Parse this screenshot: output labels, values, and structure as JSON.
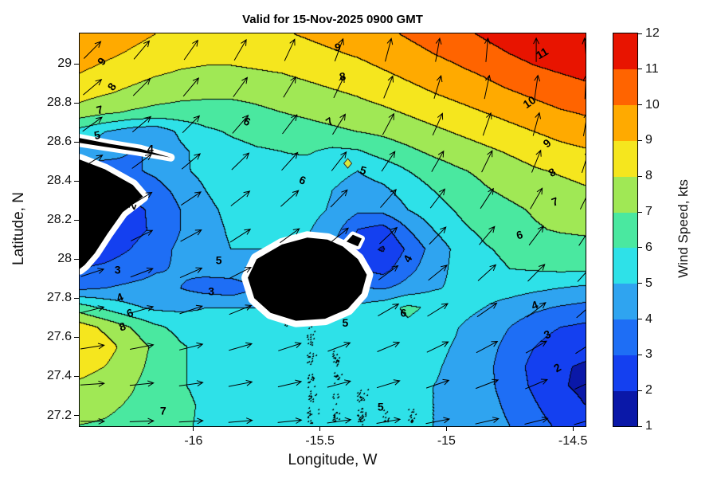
{
  "figure": {
    "title": "Valid for 15-Nov-2025 0900 GMT",
    "xlabel": "Longitude, W",
    "ylabel": "Latitude, N",
    "colorbar_label": "Wind Speed, kts",
    "background": "#ffffff"
  },
  "chart_data": {
    "type": "heatmap",
    "style": "filled-contour wind field with quiver arrows and coastline mask",
    "x_range": [
      -16.45,
      -14.45
    ],
    "y_range": [
      27.145,
      29.155
    ],
    "x_ticks": [
      -16,
      -15.5,
      -15,
      -14.5
    ],
    "x_tick_labels": [
      "-16",
      "-15.5",
      "-15",
      "-14.5"
    ],
    "y_ticks": [
      27.2,
      27.4,
      27.6,
      27.8,
      28,
      28.2,
      28.4,
      28.6,
      28.8,
      29
    ],
    "y_tick_labels": [
      "27.2",
      "27.4",
      "27.6",
      "27.8",
      "28",
      "28.2",
      "28.4",
      "28.6",
      "28.8",
      "29"
    ],
    "colorbar_ticks": [
      1,
      2,
      3,
      4,
      5,
      6,
      7,
      8,
      9,
      10,
      11,
      12
    ],
    "levels": [
      1,
      2,
      3,
      4,
      5,
      6,
      7,
      8,
      9,
      10,
      11,
      12
    ],
    "band_colors": [
      "#0a18a8",
      "#1440f0",
      "#1e6ef5",
      "#2fa4f0",
      "#2ee1e8",
      "#4ae8a0",
      "#a0e855",
      "#f5e61e",
      "#ffaa00",
      "#ff6400",
      "#e81400"
    ],
    "contour_line_color": "#000000",
    "grid": {
      "lon_start": -16.45,
      "lon_step": 0.1,
      "lat_start": 29.15,
      "lat_step": -0.1,
      "units": "kts",
      "values": [
        [
          9.8,
          9.6,
          9.3,
          9.0,
          8.8,
          8.7,
          8.7,
          8.8,
          8.9,
          9.1,
          9.3,
          9.5,
          9.8,
          10.1,
          10.4,
          10.8,
          11.1,
          11.4,
          11.7,
          11.9,
          12.0
        ],
        [
          9.5,
          9.2,
          8.9,
          8.6,
          8.4,
          8.3,
          8.3,
          8.4,
          8.5,
          8.7,
          8.9,
          9.1,
          9.4,
          9.7,
          10.0,
          10.3,
          10.7,
          11.0,
          11.3,
          11.5,
          11.7
        ],
        [
          9.0,
          8.7,
          8.4,
          8.1,
          7.9,
          7.8,
          7.8,
          7.9,
          8.0,
          8.2,
          8.4,
          8.6,
          8.9,
          9.2,
          9.5,
          9.8,
          10.1,
          10.5,
          10.8,
          11.0,
          11.2
        ],
        [
          8.4,
          8.1,
          7.8,
          7.5,
          7.3,
          7.2,
          7.2,
          7.3,
          7.5,
          7.7,
          7.9,
          8.1,
          8.4,
          8.7,
          9.0,
          9.3,
          9.6,
          9.9,
          10.2,
          10.5,
          10.7
        ],
        [
          7.6,
          7.2,
          6.9,
          6.7,
          6.6,
          6.6,
          6.6,
          6.8,
          7.0,
          7.2,
          7.4,
          7.6,
          7.8,
          8.1,
          8.4,
          8.7,
          9.0,
          9.3,
          9.6,
          9.9,
          10.1
        ],
        [
          5.6,
          5.0,
          4.5,
          4.3,
          5.2,
          5.8,
          6.1,
          6.3,
          6.4,
          6.6,
          6.8,
          7.0,
          7.2,
          7.5,
          7.8,
          8.1,
          8.4,
          8.7,
          9.0,
          9.3,
          9.5
        ],
        [
          4.8,
          4.4,
          4.0,
          4.0,
          4.8,
          5.4,
          5.7,
          5.9,
          6.0,
          6.1,
          5.8,
          5.9,
          6.4,
          6.8,
          7.2,
          7.5,
          7.8,
          8.1,
          8.4,
          8.7,
          8.9
        ],
        [
          3.5,
          3.5,
          3.8,
          4.2,
          4.8,
          5.3,
          5.6,
          5.8,
          5.8,
          5.6,
          5.3,
          5.0,
          5.4,
          6.0,
          6.5,
          6.9,
          7.2,
          7.6,
          7.9,
          8.1,
          8.3
        ],
        [
          3.0,
          3.0,
          3.2,
          3.6,
          4.3,
          5.0,
          5.4,
          5.6,
          5.6,
          5.4,
          5.0,
          4.6,
          4.8,
          5.4,
          6.0,
          6.5,
          6.9,
          7.2,
          7.5,
          7.7,
          7.9
        ],
        [
          2.4,
          2.4,
          2.7,
          3.2,
          4.0,
          4.8,
          5.2,
          5.5,
          5.5,
          5.3,
          4.9,
          4.2,
          4.3,
          5.0,
          5.6,
          6.1,
          6.5,
          6.8,
          7.1,
          7.3,
          7.5
        ],
        [
          1.8,
          2.2,
          2.6,
          3.2,
          4.0,
          4.7,
          5.1,
          5.3,
          5.3,
          5.1,
          4.5,
          3.0,
          2.6,
          4.0,
          5.0,
          5.8,
          6.2,
          6.6,
          6.9,
          7.1,
          7.2
        ],
        [
          2.2,
          2.5,
          3.0,
          3.6,
          4.2,
          4.7,
          5.0,
          5.0,
          5.0,
          4.8,
          4.0,
          2.4,
          1.9,
          3.2,
          4.4,
          5.3,
          5.9,
          6.2,
          6.4,
          6.5,
          6.6
        ],
        [
          3.0,
          3.2,
          3.5,
          3.9,
          4.1,
          4.3,
          4.6,
          4.8,
          4.9,
          4.8,
          4.4,
          3.0,
          2.6,
          3.7,
          4.6,
          5.3,
          5.7,
          6.0,
          6.1,
          6.2,
          6.2
        ],
        [
          3.8,
          4.0,
          4.2,
          4.3,
          4.0,
          3.6,
          3.4,
          4.0,
          4.6,
          4.8,
          4.6,
          4.1,
          3.9,
          4.4,
          4.9,
          5.2,
          5.4,
          5.4,
          5.2,
          5.0,
          4.8
        ],
        [
          6.5,
          5.8,
          5.2,
          4.8,
          4.8,
          5.0,
          5.0,
          5.0,
          5.0,
          5.0,
          5.0,
          5.2,
          5.6,
          6.2,
          5.8,
          5.3,
          5.0,
          4.6,
          4.2,
          3.9,
          3.7
        ],
        [
          8.5,
          7.8,
          7.0,
          6.2,
          5.7,
          5.4,
          5.2,
          5.1,
          5.0,
          5.0,
          5.0,
          5.2,
          5.5,
          5.8,
          5.4,
          5.0,
          4.6,
          4.0,
          3.4,
          3.0,
          2.8
        ],
        [
          8.8,
          8.4,
          7.6,
          6.8,
          6.1,
          5.7,
          5.4,
          5.2,
          5.1,
          5.0,
          5.0,
          5.0,
          5.2,
          5.4,
          5.2,
          4.9,
          4.4,
          3.7,
          3.0,
          2.5,
          2.3
        ],
        [
          8.4,
          8.0,
          7.4,
          6.7,
          6.1,
          5.7,
          5.4,
          5.2,
          5.1,
          5.0,
          5.0,
          5.0,
          5.1,
          5.2,
          5.1,
          4.8,
          4.3,
          3.5,
          2.7,
          2.1,
          1.9
        ],
        [
          7.8,
          7.5,
          7.1,
          6.6,
          6.1,
          5.7,
          5.4,
          5.2,
          5.1,
          5.0,
          5.0,
          5.0,
          5.0,
          5.1,
          5.0,
          4.8,
          4.3,
          3.6,
          2.8,
          2.1,
          1.8
        ],
        [
          7.4,
          7.2,
          6.9,
          6.8,
          6.3,
          5.8,
          5.4,
          5.2,
          5.1,
          5.0,
          5.0,
          5.0,
          5.0,
          5.0,
          5.0,
          4.8,
          4.4,
          3.8,
          3.1,
          2.4,
          2.0
        ],
        [
          7.0,
          6.9,
          6.7,
          6.6,
          6.2,
          5.8,
          5.4,
          5.2,
          5.1,
          5.0,
          5.0,
          5.0,
          5.0,
          5.0,
          5.0,
          4.8,
          4.5,
          4.0,
          3.4,
          2.8,
          2.4
        ]
      ]
    },
    "arrows": {
      "lon_start": -16.4,
      "lon_step": 0.195,
      "lat_start": 29.07,
      "lat_step": -0.19,
      "directions_deg_math": [
        [
          45,
          50,
          55,
          60,
          65,
          70,
          75,
          80,
          85,
          90,
          95
        ],
        [
          40,
          45,
          50,
          54,
          59,
          64,
          68,
          73,
          78,
          82,
          87
        ],
        [
          36,
          40,
          45,
          49,
          53,
          58,
          62,
          66,
          71,
          75,
          80
        ],
        [
          32,
          36,
          40,
          44,
          48,
          52,
          56,
          60,
          64,
          68,
          72
        ],
        [
          27,
          31,
          34,
          38,
          42,
          46,
          49,
          53,
          57,
          60,
          64
        ],
        [
          22,
          26,
          29,
          33,
          36,
          39,
          43,
          46,
          50,
          53,
          56
        ],
        [
          18,
          21,
          24,
          27,
          30,
          33,
          36,
          39,
          42,
          45,
          48
        ],
        [
          14,
          16,
          19,
          22,
          24,
          27,
          30,
          32,
          35,
          38,
          41
        ],
        [
          9,
          11,
          14,
          16,
          18,
          21,
          23,
          26,
          28,
          30,
          33
        ],
        [
          4,
          6,
          8,
          11,
          13,
          15,
          17,
          19,
          21,
          23,
          25
        ],
        [
          0,
          2,
          3,
          5,
          6,
          8,
          10,
          11,
          13,
          14,
          16
        ]
      ]
    },
    "contour_labels": [
      {
        "value": 9,
        "lon": -16.36,
        "lat": 29.01,
        "rot": -55
      },
      {
        "value": 8,
        "lon": -16.32,
        "lat": 28.88,
        "rot": -55
      },
      {
        "value": 7,
        "lon": -16.37,
        "lat": 28.76,
        "rot": -15
      },
      {
        "value": 5,
        "lon": -16.38,
        "lat": 28.63,
        "rot": -10
      },
      {
        "value": 4,
        "lon": -16.17,
        "lat": 28.56,
        "rot": 0
      },
      {
        "value": 9,
        "lon": -15.43,
        "lat": 29.08,
        "rot": 0
      },
      {
        "value": 8,
        "lon": -15.41,
        "lat": 28.93,
        "rot": -10
      },
      {
        "value": 7,
        "lon": -15.46,
        "lat": 28.7,
        "rot": -35
      },
      {
        "value": 6,
        "lon": -15.79,
        "lat": 28.7,
        "rot": 25
      },
      {
        "value": 6,
        "lon": -15.57,
        "lat": 28.4,
        "rot": 20
      },
      {
        "value": 5,
        "lon": -15.33,
        "lat": 28.45,
        "rot": 15
      },
      {
        "value": 11,
        "lon": -14.62,
        "lat": 29.05,
        "rot": -30
      },
      {
        "value": 10,
        "lon": -14.67,
        "lat": 28.8,
        "rot": -35
      },
      {
        "value": 9,
        "lon": -14.6,
        "lat": 28.59,
        "rot": -40
      },
      {
        "value": 8,
        "lon": -14.58,
        "lat": 28.44,
        "rot": -30
      },
      {
        "value": 7,
        "lon": -14.57,
        "lat": 28.29,
        "rot": -20
      },
      {
        "value": 6,
        "lon": -14.71,
        "lat": 28.12,
        "rot": -15
      },
      {
        "value": 2,
        "lon": -16.24,
        "lat": 28.27,
        "rot": -70
      },
      {
        "value": 3,
        "lon": -16.3,
        "lat": 27.94,
        "rot": 0
      },
      {
        "value": 5,
        "lon": -15.9,
        "lat": 27.99,
        "rot": 0
      },
      {
        "value": 3,
        "lon": -15.93,
        "lat": 27.83,
        "rot": 0
      },
      {
        "value": 4,
        "lon": -16.29,
        "lat": 27.8,
        "rot": -20
      },
      {
        "value": 6,
        "lon": -16.25,
        "lat": 27.72,
        "rot": -20
      },
      {
        "value": 8,
        "lon": -16.28,
        "lat": 27.65,
        "rot": -20
      },
      {
        "value": 5,
        "lon": -15.4,
        "lat": 27.67,
        "rot": 0
      },
      {
        "value": 6,
        "lon": -15.17,
        "lat": 27.72,
        "rot": 0
      },
      {
        "value": 5,
        "lon": -15.26,
        "lat": 27.24,
        "rot": 0
      },
      {
        "value": 7,
        "lon": -16.12,
        "lat": 27.22,
        "rot": 0
      },
      {
        "value": 4,
        "lon": -15.15,
        "lat": 28.0,
        "rot": -60
      },
      {
        "value": 4,
        "lon": -14.65,
        "lat": 27.76,
        "rot": -20
      },
      {
        "value": 3,
        "lon": -14.6,
        "lat": 27.61,
        "rot": -25
      },
      {
        "value": 2,
        "lon": -14.56,
        "lat": 27.44,
        "rot": -30
      }
    ],
    "islands": [
      {
        "name": "tenerife-ridge",
        "halo": 10,
        "points": [
          [
            -16.45,
            28.62
          ],
          [
            -16.33,
            28.59
          ],
          [
            -16.21,
            28.565
          ],
          [
            -16.09,
            28.52
          ],
          [
            -16.22,
            28.55
          ],
          [
            -16.35,
            28.575
          ],
          [
            -16.45,
            28.595
          ]
        ]
      },
      {
        "name": "tenerife",
        "halo": 14,
        "points": [
          [
            -16.45,
            28.51
          ],
          [
            -16.35,
            28.46
          ],
          [
            -16.24,
            28.38
          ],
          [
            -16.2,
            28.32
          ],
          [
            -16.28,
            28.24
          ],
          [
            -16.34,
            28.13
          ],
          [
            -16.39,
            28.03
          ],
          [
            -16.43,
            27.97
          ],
          [
            -16.45,
            27.95
          ]
        ]
      },
      {
        "name": "gran-canaria",
        "halo": 16,
        "points": [
          [
            -15.55,
            28.11
          ],
          [
            -15.47,
            28.1
          ],
          [
            -15.41,
            28.065
          ],
          [
            -15.35,
            28.0
          ],
          [
            -15.315,
            27.92
          ],
          [
            -15.335,
            27.825
          ],
          [
            -15.39,
            27.745
          ],
          [
            -15.48,
            27.695
          ],
          [
            -15.595,
            27.685
          ],
          [
            -15.695,
            27.725
          ],
          [
            -15.76,
            27.8
          ],
          [
            -15.785,
            27.905
          ],
          [
            -15.75,
            28.0
          ],
          [
            -15.65,
            28.075
          ]
        ]
      },
      {
        "name": "la-isleta",
        "halo": 8,
        "points": [
          [
            -15.37,
            28.125
          ],
          [
            -15.335,
            28.105
          ],
          [
            -15.35,
            28.065
          ],
          [
            -15.395,
            28.09
          ]
        ]
      }
    ],
    "station_marker": {
      "lon": -15.39,
      "lat": 28.49,
      "color": "#d8e83c"
    }
  }
}
